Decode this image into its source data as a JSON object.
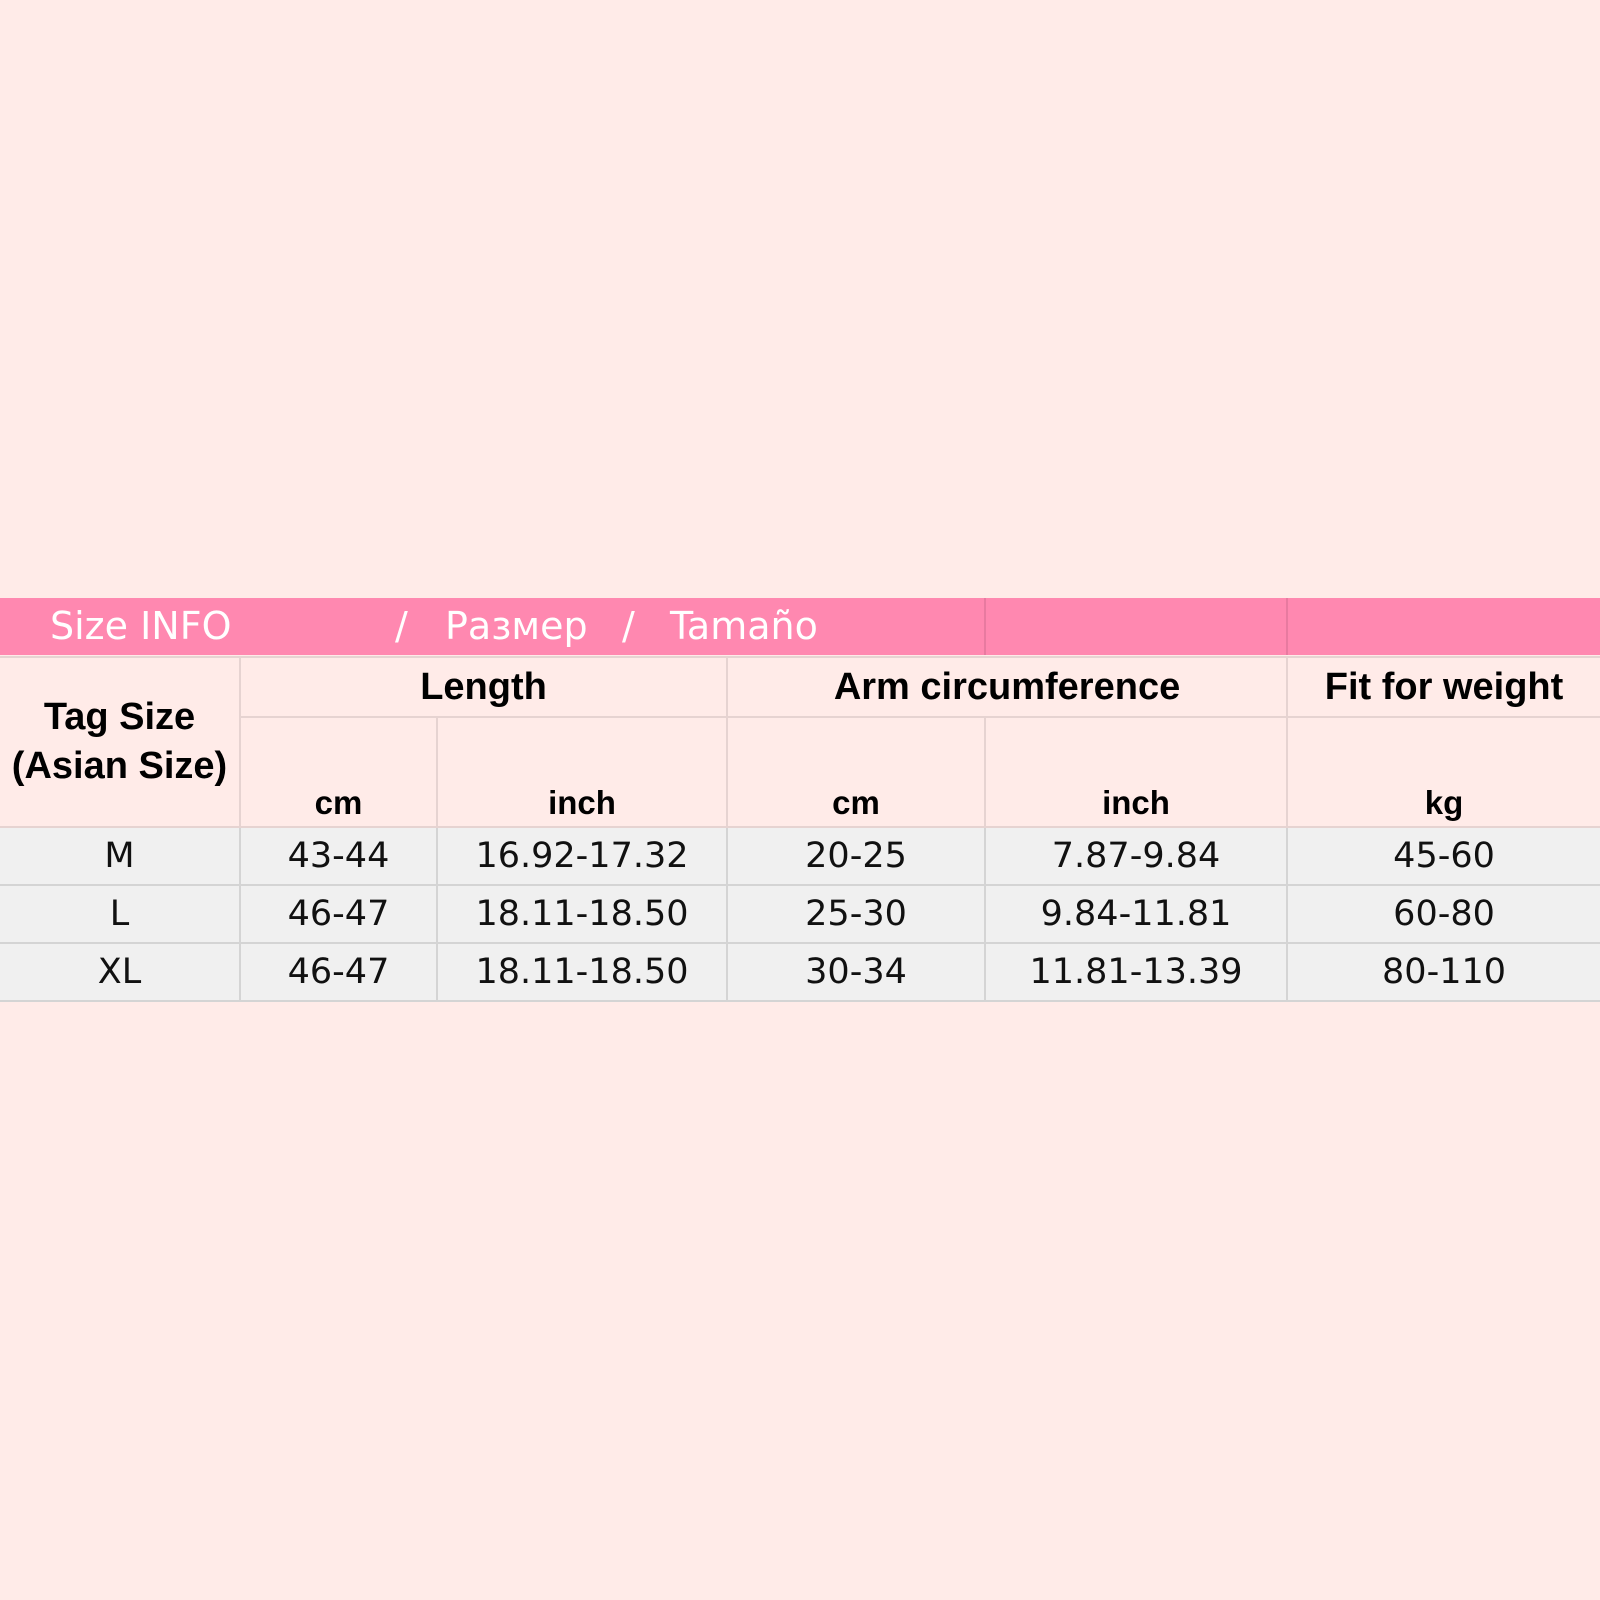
{
  "title": {
    "en": "Size INFO",
    "sep1": "/",
    "ru": "Размер",
    "sep2": "/",
    "es": "Tamaño"
  },
  "colors": {
    "background": "#ffebe8",
    "title_bar": "#ff88b0",
    "data_row": "#f0f0f0"
  },
  "headers": {
    "tag_size": "Tag Size (Asian Size)",
    "length": "Length",
    "arm": "Arm circumference",
    "weight": "Fit for weight",
    "units": [
      "cm",
      "inch",
      "cm",
      "inch",
      "kg"
    ]
  },
  "rows": [
    [
      "M",
      "43-44",
      "16.92-17.32",
      "20-25",
      "7.87-9.84",
      "45-60"
    ],
    [
      "L",
      "46-47",
      "18.11-18.50",
      "25-30",
      "9.84-11.81",
      "60-80"
    ],
    [
      "XL",
      "46-47",
      "18.11-18.50",
      "30-34",
      "11.81-13.39",
      "80-110"
    ]
  ]
}
